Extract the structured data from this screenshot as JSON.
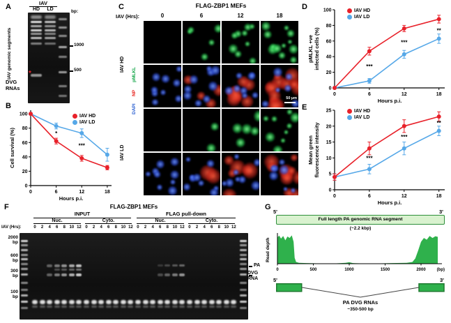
{
  "colors": {
    "hd": "#e8212a",
    "ld": "#56a8e8",
    "green": "#18a74b",
    "np": "#e8251f",
    "dapi": "#2a5fd0",
    "cov": "#2fb14c"
  },
  "panel_a": {
    "label": "A",
    "gel_title": "IAV",
    "lanes": [
      "HD",
      "LD"
    ],
    "bp_label": "bp:",
    "marker_1000": "1000",
    "marker_500": "500",
    "side_label": "IAV genomic segments",
    "dvg_label": "DVG RNAs",
    "asterisk": "*"
  },
  "panel_b": {
    "label": "B"
  },
  "panel_c": {
    "label": "C",
    "title": "FLAG-ZBP1 MEFs",
    "hrs_label": "IAV (Hrs):",
    "timepoints": [
      "0",
      "6",
      "12",
      "18"
    ],
    "group_hd": "IAV HD",
    "group_ld": "IAV LD",
    "ch_pmlkl": "pMLKL",
    "ch_np": "NP",
    "ch_dapi": "DAPI",
    "scalebar": "50 µm",
    "tiles": [
      {
        "g": 0,
        "r": 0,
        "b": 0
      },
      {
        "g": 5,
        "r": 0,
        "b": 0
      },
      {
        "g": 9,
        "r": 0,
        "b": 0
      },
      {
        "g": 12,
        "r": 0,
        "b": 0
      },
      {
        "g": 0,
        "r": 0,
        "b": 9
      },
      {
        "g": 0,
        "r": 4,
        "b": 9
      },
      {
        "g": 0,
        "r": 8,
        "b": 8
      },
      {
        "g": 0,
        "r": 12,
        "b": 6
      },
      {
        "g": 0,
        "r": 0,
        "b": 0
      },
      {
        "g": 2,
        "r": 0,
        "b": 0
      },
      {
        "g": 5,
        "r": 0,
        "b": 0
      },
      {
        "g": 9,
        "r": 0,
        "b": 0
      },
      {
        "g": 0,
        "r": 0,
        "b": 9
      },
      {
        "g": 0,
        "r": 2,
        "b": 9
      },
      {
        "g": 0,
        "r": 6,
        "b": 8
      },
      {
        "g": 0,
        "r": 10,
        "b": 7
      }
    ]
  },
  "panel_d": {
    "label": "D"
  },
  "panel_e": {
    "label": "E"
  },
  "panel_f": {
    "label": "F",
    "title": "FLAG-ZBP1 MEFs",
    "group1": "INPUT",
    "group2": "FLAG pull-down",
    "sub_nuc": "Nuc.",
    "sub_cyto": "Cyto.",
    "hrs_label": "IAV (Hrs):",
    "lane_numbers": [
      "0",
      "2",
      "4",
      "6",
      "8",
      "10",
      "12"
    ],
    "bp_markers": [
      {
        "v": "2000",
        "u": "bp"
      },
      {
        "v": "600",
        "u": "bp"
      },
      {
        "v": "300",
        "u": "bp"
      },
      {
        "v": "100",
        "u": "bp"
      }
    ],
    "right_label_pa": "PA",
    "right_label_dvg": "DVG",
    "right_label_rna": "RNA"
  },
  "panel_g": {
    "label": "G",
    "five_prime": "5'",
    "three_prime": "3'",
    "box_title": "Full length PA genomic RNA segment",
    "box_sub": "(~2.2 kbp)",
    "dvg_title": "PA DVG RNAs",
    "dvg_sub": "~350-500 bp"
  },
  "chart_data": [
    {
      "id": "B",
      "type": "line",
      "x": [
        0,
        6,
        12,
        18
      ],
      "series": [
        {
          "name": "IAV HD",
          "color": "#e8212a",
          "values": [
            100,
            62,
            38,
            25
          ],
          "errors": [
            0,
            4,
            4,
            3
          ]
        },
        {
          "name": "IAV LD",
          "color": "#56a8e8",
          "values": [
            100,
            83,
            73,
            43
          ],
          "errors": [
            0,
            4,
            6,
            9
          ]
        }
      ],
      "xlabel": "Hours p.i.",
      "ylabel": "Cell survival (%)",
      "xlim": [
        0,
        19
      ],
      "ylim": [
        0,
        105
      ],
      "xticks": [
        0,
        6,
        12,
        18
      ],
      "yticks": [
        0,
        20,
        40,
        60,
        80,
        100
      ],
      "annotations": [
        {
          "x": 6,
          "y": 70,
          "text": "*"
        },
        {
          "x": 12,
          "y": 53,
          "text": "***"
        }
      ],
      "legend_position": "top-right"
    },
    {
      "id": "D",
      "type": "line",
      "x": [
        0,
        6,
        12,
        18
      ],
      "series": [
        {
          "name": "IAV HD",
          "color": "#e8212a",
          "values": [
            0,
            47,
            76,
            88
          ],
          "errors": [
            0,
            5,
            4,
            5
          ]
        },
        {
          "name": "IAV LD",
          "color": "#56a8e8",
          "values": [
            0,
            9,
            43,
            63
          ],
          "errors": [
            0,
            3,
            5,
            6
          ]
        }
      ],
      "xlabel": "Hours p.i.",
      "ylabel": "pMLKL +ve\ninfected cells (%)",
      "xlim": [
        0,
        19
      ],
      "ylim": [
        0,
        100
      ],
      "xticks": [
        0,
        6,
        12,
        18
      ],
      "yticks": [
        0,
        20,
        40,
        60,
        80,
        100
      ],
      "annotations": [
        {
          "x": 6,
          "y": 25,
          "text": "***"
        },
        {
          "x": 12,
          "y": 56,
          "text": "***"
        },
        {
          "x": 18,
          "y": 71,
          "text": "**"
        }
      ],
      "legend_position": "top-left"
    },
    {
      "id": "E",
      "type": "line",
      "x": [
        0,
        6,
        12,
        18
      ],
      "series": [
        {
          "name": "IAV HD",
          "color": "#e8212a",
          "values": [
            4,
            13,
            20,
            23
          ],
          "errors": [
            1,
            2,
            2,
            1.5
          ]
        },
        {
          "name": "IAV LD",
          "color": "#56a8e8",
          "values": [
            4,
            6.5,
            13,
            18.5
          ],
          "errors": [
            1,
            1.5,
            2,
            1.5
          ]
        }
      ],
      "xlabel": "Hours p.i.",
      "ylabel": "Mean green\nfluorescence intensity",
      "xlim": [
        0,
        19
      ],
      "ylim": [
        0,
        25
      ],
      "xticks": [
        0,
        6,
        12,
        18
      ],
      "yticks": [
        0,
        5,
        10,
        15,
        20,
        25
      ],
      "annotations": [
        {
          "x": 6,
          "y": 9.3,
          "text": "***"
        },
        {
          "x": 12,
          "y": 16,
          "text": "***"
        },
        {
          "x": 18,
          "y": 20.4,
          "text": "**"
        }
      ],
      "legend_position": "top-left"
    },
    {
      "id": "G",
      "type": "area",
      "x": [
        0,
        25,
        50,
        80,
        110,
        140,
        170,
        200,
        225,
        240,
        260,
        300,
        400,
        600,
        800,
        950,
        1000,
        1050,
        1200,
        1400,
        1600,
        1800,
        1880,
        1920,
        1960,
        2000,
        2040,
        2080,
        2120,
        2160,
        2200,
        2233
      ],
      "values": [
        90,
        96,
        86,
        95,
        80,
        93,
        88,
        97,
        75,
        20,
        6,
        3,
        2,
        1,
        1,
        3,
        5,
        2,
        1,
        1,
        2,
        3,
        6,
        18,
        45,
        75,
        88,
        82,
        95,
        88,
        94,
        92
      ],
      "color": "#2fb14c",
      "ylabel": "Read depth",
      "xlim": [
        0,
        2233
      ],
      "ylim": [
        0,
        105
      ],
      "xticks": [
        0,
        500,
        1000,
        1500,
        2000
      ],
      "x_suffix": "(bp)"
    }
  ]
}
